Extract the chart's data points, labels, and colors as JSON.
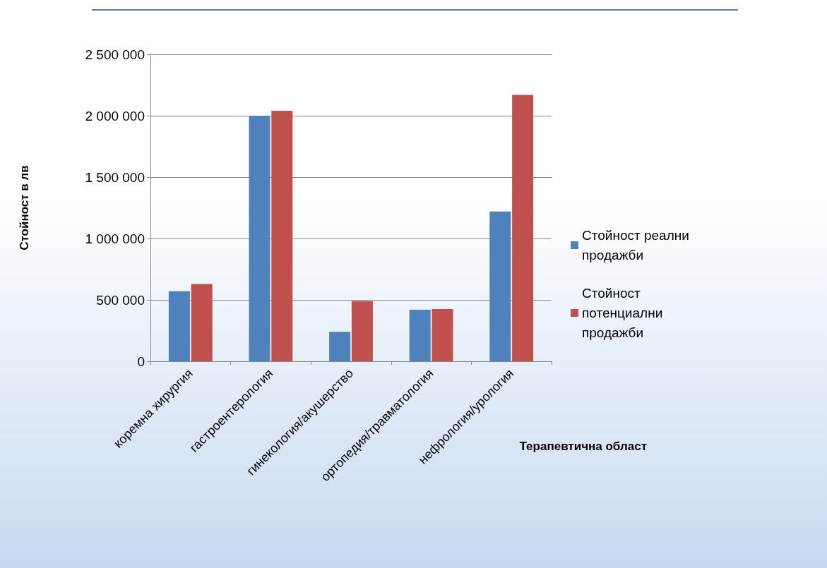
{
  "chart_data": {
    "type": "bar",
    "xlabel": "Терапевтична област",
    "ylabel": "Стойност в лв",
    "categories": [
      "коремна хирургия",
      "гастроентерология",
      "гинекология/акушерство",
      "ортопедия/травматология",
      "нефрология/урология"
    ],
    "series": [
      {
        "name": "Стойност реални продажби",
        "color": "#4f81bd",
        "values": [
          570000,
          2000000,
          240000,
          420000,
          1220000
        ]
      },
      {
        "name": "Стойност потенциални продажби",
        "color": "#c0504d",
        "values": [
          630000,
          2040000,
          490000,
          425000,
          2170000
        ]
      }
    ],
    "ylim": [
      0,
      2500000
    ],
    "yticks": [
      {
        "value": 0,
        "label": "0"
      },
      {
        "value": 500000,
        "label": "500 000"
      },
      {
        "value": 1000000,
        "label": "1 000 000"
      },
      {
        "value": 1500000,
        "label": "1 500 000"
      },
      {
        "value": 2000000,
        "label": "2 000 000"
      },
      {
        "value": 2500000,
        "label": "2 500 000"
      }
    ],
    "grid": "y",
    "legend": "right"
  }
}
